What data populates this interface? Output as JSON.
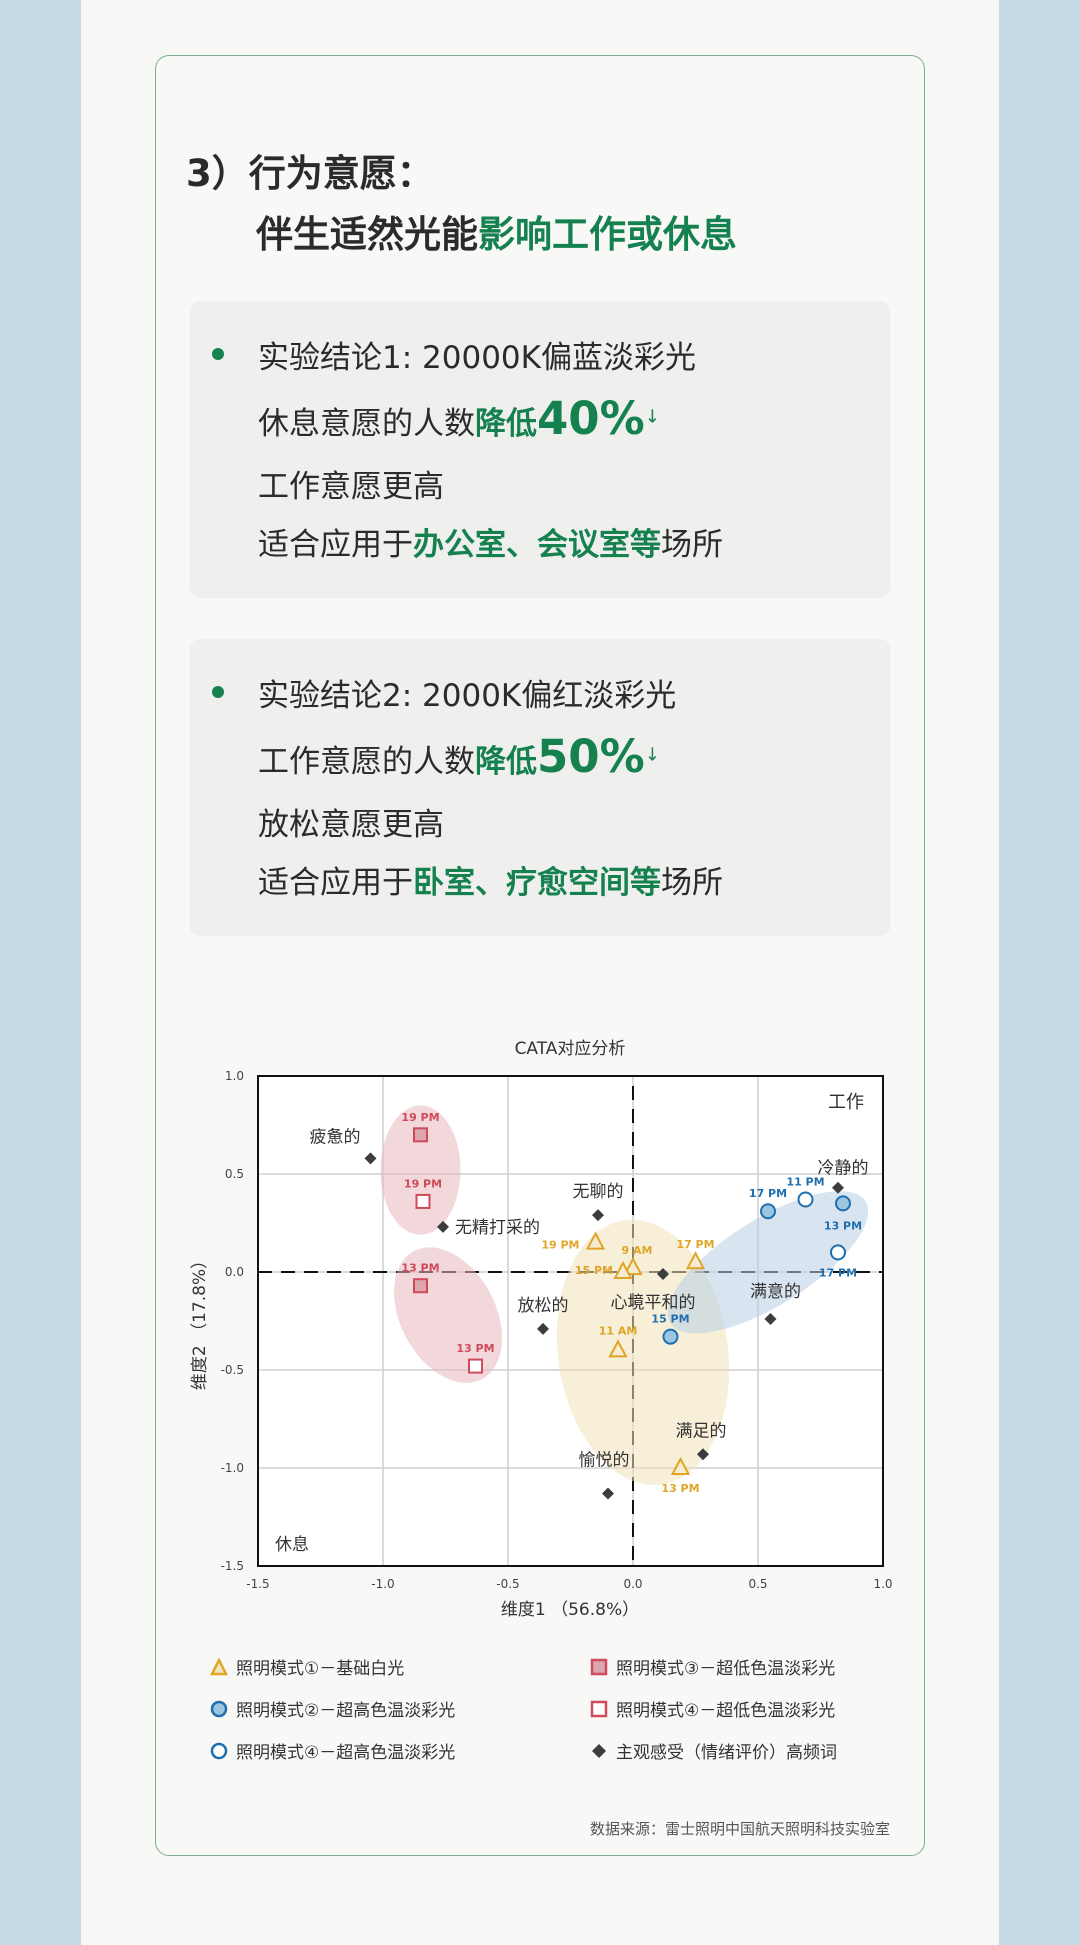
{
  "heading": {
    "line1": "3）行为意愿：",
    "line2_plain": "伴生适然光能",
    "line2_highlight": "影响工作或休息"
  },
  "conclusions": [
    {
      "title": "实验结论1: 20000K偏蓝淡彩光",
      "line2_plain": "休息意愿的人数",
      "line2_highlight": "降低",
      "percent": "40%",
      "arrow": "↓",
      "line3": "工作意愿更高",
      "line4_plain": "适合应用于",
      "line4_highlight": "办公室、会议室等",
      "line4_tail": "场所"
    },
    {
      "title": "实验结论2: 2000K偏红淡彩光",
      "line2_plain": "工作意愿的人数",
      "line2_highlight": "降低",
      "percent": "50%",
      "arrow": "↓",
      "line3": "放松意愿更高",
      "line4_plain": "适合应用于",
      "line4_highlight": "卧室、疗愈空间等",
      "line4_tail": "场所"
    }
  ],
  "chart_data": {
    "type": "scatter",
    "title": "CATA对应分析",
    "xlabel": "维度1 （56.8%）",
    "ylabel": "维度2 （17.8%）",
    "xlim": [
      -1.5,
      1.0
    ],
    "ylim": [
      -1.5,
      1.0
    ],
    "xticks": [
      "-1.5",
      "-1.0",
      "-0.5",
      "0.0",
      "0.5",
      "1.0"
    ],
    "yticks": [
      "1.0",
      "0.5",
      "0.0",
      "-0.5",
      "-1.0",
      "-1.5"
    ],
    "grid": true,
    "quadrant_labels": {
      "top_right": "工作",
      "bottom_left": "休息"
    },
    "colors": {
      "yellow": "#e0a526",
      "blue": "#1f6fae",
      "blue_fill": "#9cc6e0",
      "red": "#cf4a5a",
      "red_fill": "#dba7ad",
      "diamond": "#3d3d3d"
    },
    "series": [
      {
        "name": "照明模式①－基础白光",
        "marker": "triangle",
        "points": [
          {
            "x": -0.15,
            "y": 0.15,
            "label": "19 PM"
          },
          {
            "x": 0.0,
            "y": 0.02,
            "label": "9 AM"
          },
          {
            "x": -0.04,
            "y": 0.0,
            "label": "15 PM"
          },
          {
            "x": 0.25,
            "y": 0.05,
            "label": "17 PM"
          },
          {
            "x": -0.06,
            "y": -0.4,
            "label": "11 AM"
          },
          {
            "x": 0.19,
            "y": -1.0,
            "label": "13 PM"
          }
        ]
      },
      {
        "name": "照明模式②－超高色温淡彩光",
        "marker": "circle-filled",
        "points": [
          {
            "x": 0.54,
            "y": 0.31,
            "label": "17 PM"
          },
          {
            "x": 0.84,
            "y": 0.35,
            "label": "13 PM"
          },
          {
            "x": 0.15,
            "y": -0.33,
            "label": "15 PM"
          }
        ]
      },
      {
        "name": "照明模式④－超高色温淡彩光",
        "marker": "circle-open",
        "points": [
          {
            "x": 0.69,
            "y": 0.37,
            "label": "11 PM"
          },
          {
            "x": 0.82,
            "y": 0.1,
            "label": "17 PM"
          }
        ]
      },
      {
        "name": "照明模式③－超低色温淡彩光",
        "marker": "square-filled",
        "points": [
          {
            "x": -0.85,
            "y": 0.7,
            "label": "19 PM"
          },
          {
            "x": -0.85,
            "y": -0.07,
            "label": "13 PM"
          }
        ]
      },
      {
        "name": "照明模式④－超低色温淡彩光",
        "marker": "square-open",
        "points": [
          {
            "x": -0.84,
            "y": 0.36,
            "label": "19 PM"
          },
          {
            "x": -0.63,
            "y": -0.48,
            "label": "13 PM"
          }
        ]
      },
      {
        "name": "主观感受（情绪评价）高频词",
        "marker": "diamond",
        "points": [
          {
            "x": -1.05,
            "y": 0.58,
            "label": "疲惫的"
          },
          {
            "x": -0.76,
            "y": 0.23,
            "label": "无精打采的"
          },
          {
            "x": -0.14,
            "y": 0.29,
            "label": "无聊的"
          },
          {
            "x": 0.12,
            "y": -0.01,
            "label": "心境平和的"
          },
          {
            "x": 0.82,
            "y": 0.43,
            "label": "冷静的"
          },
          {
            "x": 0.55,
            "y": -0.24,
            "label": "满意的"
          },
          {
            "x": -0.36,
            "y": -0.29,
            "label": "放松的"
          },
          {
            "x": 0.28,
            "y": -0.93,
            "label": "满足的"
          },
          {
            "x": -0.1,
            "y": -1.13,
            "label": "愉悦的"
          }
        ]
      }
    ]
  },
  "legend": {
    "items": [
      "照明模式①－基础白光",
      "照明模式②－超高色温淡彩光",
      "照明模式④－超高色温淡彩光",
      "照明模式③－超低色温淡彩光",
      "照明模式④－超低色温淡彩光",
      "主观感受（情绪评价）高频词"
    ]
  },
  "source": "数据来源：雷士照明中国航天照明科技实验室"
}
